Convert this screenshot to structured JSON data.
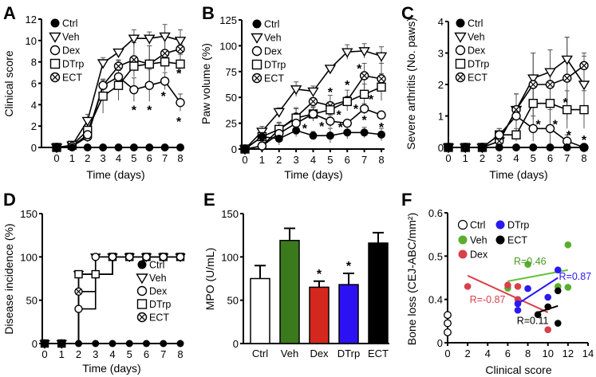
{
  "chart_data": [
    {
      "panel": "A",
      "type": "line",
      "xlabel": "Time (days)",
      "ylabel": "Clinical score",
      "xlim": [
        0,
        8
      ],
      "ylim": [
        0,
        12
      ],
      "xticks": [
        0,
        1,
        2,
        3,
        4,
        5,
        6,
        7,
        8
      ],
      "yticks": [
        0,
        2,
        4,
        6,
        8,
        10,
        12
      ],
      "x": [
        0,
        1,
        2,
        3,
        4,
        5,
        6,
        7,
        8
      ],
      "series": [
        {
          "name": "Ctrl",
          "marker": "filled-circle",
          "values": [
            0,
            0,
            0,
            0,
            0,
            0,
            0,
            0,
            0
          ],
          "error": [
            0,
            0,
            0,
            0,
            0,
            0,
            0,
            0,
            0
          ]
        },
        {
          "name": "Veh",
          "marker": "down-triangle",
          "values": [
            0,
            0.2,
            2.5,
            7.9,
            8.9,
            10.2,
            10.2,
            10.4,
            10.0
          ],
          "error": [
            0,
            0,
            0.6,
            0.5,
            0.3,
            0.8,
            0.6,
            1.1,
            1.0
          ]
        },
        {
          "name": "Dex",
          "marker": "open-circle",
          "values": [
            0,
            0.1,
            1.2,
            5.8,
            6.6,
            5.4,
            5.8,
            6.2,
            4.2
          ],
          "error": [
            0,
            0,
            0.5,
            0.5,
            1.5,
            1.1,
            1.5,
            0.8,
            0.8
          ]
        },
        {
          "name": "DTrp",
          "marker": "square",
          "values": [
            0,
            0.2,
            1.6,
            4.8,
            5.8,
            7.6,
            7.8,
            8.0,
            7.8
          ],
          "error": [
            0,
            0,
            0.3,
            1.6,
            1.4,
            0.6,
            1.7,
            0.9,
            0.9
          ]
        },
        {
          "name": "ECT",
          "marker": "x-circle",
          "values": [
            0,
            0.1,
            1.0,
            5.8,
            7.6,
            8.2,
            7.8,
            8.8,
            9.2
          ],
          "error": [
            0,
            0,
            0.5,
            0.5,
            0.6,
            1.6,
            1.7,
            1.5,
            0.5
          ]
        }
      ],
      "annotations": [
        {
          "x": 5.0,
          "y": 3.7,
          "text": "*"
        },
        {
          "x": 6.0,
          "y": 3.7,
          "text": "*"
        },
        {
          "x": 6.9,
          "y": 5.0,
          "text": "*"
        },
        {
          "x": 7.9,
          "y": 7.1,
          "text": "*"
        },
        {
          "x": 7.9,
          "y": 2.6,
          "text": "*"
        }
      ],
      "legend": "top-left"
    },
    {
      "panel": "B",
      "type": "line",
      "xlabel": "Time (days)",
      "ylabel": "Paw volume (%)",
      "xlim": [
        0,
        8
      ],
      "ylim": [
        0,
        125
      ],
      "xticks": [
        0,
        1,
        2,
        3,
        4,
        5,
        6,
        7,
        8
      ],
      "yticks": [
        0,
        25,
        50,
        75,
        100,
        125
      ],
      "x": [
        0,
        1,
        2,
        3,
        4,
        5,
        6,
        7,
        8
      ],
      "series": [
        {
          "name": "Ctrl",
          "marker": "filled-circle",
          "values": [
            0,
            12,
            10,
            18,
            13,
            13,
            16,
            16,
            14
          ],
          "error": [
            0,
            3,
            6,
            6,
            4,
            7,
            6,
            5,
            6
          ]
        },
        {
          "name": "Veh",
          "marker": "down-triangle",
          "values": [
            0,
            17,
            36,
            58,
            56,
            78,
            94,
            95,
            90
          ],
          "error": [
            0,
            5,
            4,
            7,
            5,
            0,
            7,
            7,
            9
          ]
        },
        {
          "name": "Dex",
          "marker": "open-circle",
          "values": [
            0,
            3,
            15,
            25,
            34,
            27,
            25,
            39,
            33
          ],
          "error": [
            0,
            2,
            4,
            8,
            6,
            6,
            3,
            5,
            3
          ]
        },
        {
          "name": "DTrp",
          "marker": "square",
          "values": [
            0,
            12,
            19,
            30,
            34,
            38,
            46,
            53,
            60
          ],
          "error": [
            0,
            3,
            7,
            9,
            7,
            0,
            0,
            10,
            13
          ]
        },
        {
          "name": "ECT",
          "marker": "x-circle",
          "values": [
            0,
            3,
            19,
            31,
            46,
            42,
            47,
            71,
            68
          ],
          "error": [
            0,
            3,
            6,
            9,
            0,
            10,
            10,
            12,
            15
          ]
        }
      ],
      "annotations": [
        {
          "x": 3.5,
          "y": 22,
          "text": "*"
        },
        {
          "x": 4.5,
          "y": 24,
          "text": "*"
        },
        {
          "x": 5.0,
          "y": 57,
          "text": "*"
        },
        {
          "x": 5.5,
          "y": 35,
          "text": "*"
        },
        {
          "x": 5.6,
          "y": 23,
          "text": "*"
        },
        {
          "x": 6.0,
          "y": 64,
          "text": "*"
        },
        {
          "x": 6.5,
          "y": 41,
          "text": "*"
        },
        {
          "x": 6.7,
          "y": 80,
          "text": "*"
        },
        {
          "x": 7.0,
          "y": 30,
          "text": "*"
        },
        {
          "x": 7.4,
          "y": 50,
          "text": "*"
        },
        {
          "x": 8.0,
          "y": 23,
          "text": "*"
        }
      ],
      "legend": "top-left"
    },
    {
      "panel": "C",
      "type": "line",
      "xlabel": "Time (days)",
      "ylabel": "Severe arthritis (No. paws)",
      "xlim": [
        0,
        8
      ],
      "ylim": [
        0,
        4
      ],
      "xticks": [
        0,
        1,
        2,
        3,
        4,
        5,
        6,
        7,
        8
      ],
      "yticks": [
        0,
        1,
        2,
        3,
        4
      ],
      "x": [
        0,
        1,
        2,
        3,
        4,
        5,
        6,
        7,
        8
      ],
      "series": [
        {
          "name": "Ctrl",
          "marker": "filled-circle",
          "values": [
            0,
            0,
            0,
            0,
            0,
            0,
            0,
            0,
            0
          ],
          "error": [
            0,
            0,
            0,
            0,
            0,
            0,
            0,
            0,
            0
          ]
        },
        {
          "name": "Veh",
          "marker": "down-triangle",
          "values": [
            0,
            0,
            0,
            0.2,
            1.2,
            2.2,
            2.4,
            2.8,
            2.0
          ],
          "error": [
            0,
            0,
            0,
            0.2,
            0.5,
            0.8,
            0.7,
            0.7,
            0.9
          ]
        },
        {
          "name": "Dex",
          "marker": "open-circle",
          "values": [
            0,
            0,
            0,
            0.4,
            1.0,
            0.6,
            0.6,
            0.2,
            0
          ],
          "error": [
            0,
            0,
            0,
            0.2,
            0.7,
            0.4,
            0.6,
            0.2,
            0
          ]
        },
        {
          "name": "DTrp",
          "marker": "square",
          "values": [
            0,
            0,
            0,
            0.4,
            0.4,
            1.4,
            1.4,
            1.2,
            1.2
          ],
          "error": [
            0,
            0,
            0,
            0.2,
            0.2,
            0.5,
            0.5,
            0.6,
            0.6
          ]
        },
        {
          "name": "ECT",
          "marker": "x-circle",
          "values": [
            0,
            0,
            0,
            0.2,
            1.2,
            2.0,
            2.0,
            2.2,
            2.6
          ],
          "error": [
            0,
            0,
            0,
            0.3,
            0.5,
            1.0,
            1.1,
            1.3,
            0.4
          ]
        }
      ],
      "annotations": [
        {
          "x": 5.3,
          "y": 0.8,
          "text": "*"
        },
        {
          "x": 6.3,
          "y": 0.8,
          "text": "*"
        },
        {
          "x": 6.9,
          "y": 1.5,
          "text": "*"
        },
        {
          "x": 7.1,
          "y": 0.45,
          "text": "*"
        },
        {
          "x": 8.0,
          "y": 0.3,
          "text": "*"
        }
      ],
      "legend": "top-left"
    },
    {
      "panel": "D",
      "type": "line",
      "step": true,
      "xlabel": "Time (days)",
      "ylabel": "Disease incidence (%)",
      "xlim": [
        0,
        8
      ],
      "ylim": [
        0,
        150
      ],
      "xticks": [
        0,
        1,
        2,
        3,
        4,
        5,
        6,
        7,
        8
      ],
      "yticks": [
        0,
        50,
        100,
        150
      ],
      "x": [
        0,
        1,
        2,
        3,
        4,
        5,
        6,
        7,
        8
      ],
      "series": [
        {
          "name": "Ctrl",
          "marker": "filled-circle",
          "values": [
            0,
            0,
            0,
            0,
            0,
            0,
            0,
            0,
            0
          ]
        },
        {
          "name": "Veh",
          "marker": "down-triangle",
          "values": [
            0,
            0,
            80,
            100,
            100,
            100,
            100,
            100,
            100
          ]
        },
        {
          "name": "Dex",
          "marker": "open-circle",
          "values": [
            0,
            0,
            40,
            100,
            100,
            100,
            100,
            100,
            100
          ]
        },
        {
          "name": "DTrp",
          "marker": "square",
          "values": [
            0,
            0,
            80,
            80,
            100,
            100,
            100,
            100,
            100
          ]
        },
        {
          "name": "ECT",
          "marker": "x-circle",
          "values": [
            0,
            0,
            60,
            80,
            100,
            100,
            100,
            100,
            100
          ]
        }
      ],
      "annotations": [],
      "legend": "right"
    },
    {
      "panel": "E",
      "type": "bar",
      "xlabel": "",
      "ylabel": "MPO (U/mL)",
      "ylim": [
        0,
        150
      ],
      "yticks": [
        0,
        50,
        100,
        150
      ],
      "categories": [
        "Ctrl",
        "Veh",
        "Dex",
        "DTrp",
        "ECT"
      ],
      "values": [
        75,
        119,
        65,
        68,
        116
      ],
      "error": [
        15,
        14,
        7,
        13,
        12
      ],
      "colors": [
        "#ffffff",
        "#3b7a1c",
        "#d4281e",
        "#2c12f2",
        "#000000"
      ],
      "significance": [
        "",
        "",
        "*",
        "*",
        ""
      ]
    },
    {
      "panel": "F",
      "type": "scatter",
      "xlabel": "Clinical score",
      "ylabel": "Bone loss (CEJ-ABC/mm²)",
      "xlim": [
        0,
        14
      ],
      "ylim": [
        0.3,
        0.6
      ],
      "xticks": [
        0,
        2,
        4,
        6,
        8,
        10,
        12,
        14
      ],
      "yticks": [
        {
          "value": 0.3,
          "label": "0"
        },
        {
          "value": 0.4,
          "label": "0.4"
        },
        {
          "value": 0.5,
          "label": "0.5"
        },
        {
          "value": 0.6,
          "label": "0.6"
        }
      ],
      "series": [
        {
          "name": "Ctrl",
          "color": "#ffffff",
          "points": [
            [
              0,
              0.364
            ],
            [
              0,
              0.345
            ],
            [
              0,
              0.324
            ]
          ]
        },
        {
          "name": "Veh",
          "color": "#5aae2e",
          "points": [
            [
              6,
              0.426
            ],
            [
              8,
              0.481
            ],
            [
              11,
              0.43
            ],
            [
              12,
              0.526
            ],
            [
              12,
              0.428
            ]
          ],
          "fit": [
            [
              6,
              0.442
            ],
            [
              12,
              0.468
            ]
          ],
          "r_label": "R=0.46",
          "r_pos": [
            6.6,
            0.48
          ]
        },
        {
          "name": "Dex",
          "color": "#d8404a",
          "points": [
            [
              2,
              0.43
            ],
            [
              6,
              0.433
            ],
            [
              7,
              0.43
            ],
            [
              7,
              0.4
            ],
            [
              10,
              0.33
            ]
          ],
          "fit": [
            [
              2,
              0.455
            ],
            [
              10,
              0.37
            ]
          ],
          "r_label": "R=-0.87",
          "r_pos": [
            2.2,
            0.392
          ]
        },
        {
          "name": "DTrp",
          "color": "#2a1af0",
          "points": [
            [
              7,
              0.39
            ],
            [
              7,
              0.375
            ],
            [
              8,
              0.425
            ],
            [
              10,
              0.405
            ],
            [
              11,
              0.468
            ]
          ],
          "fit": [
            [
              7,
              0.39
            ],
            [
              11,
              0.45
            ]
          ],
          "r_label": "R=0.87",
          "r_pos": [
            11.1,
            0.445
          ]
        },
        {
          "name": "ECT",
          "color": "#000000",
          "points": [
            [
              9,
              0.365
            ],
            [
              10,
              0.383
            ],
            [
              11,
              0.42
            ],
            [
              11,
              0.345
            ]
          ],
          "fit": [
            [
              9,
              0.37
            ],
            [
              11,
              0.385
            ]
          ],
          "r_label": "R=0.11",
          "r_pos": [
            6.9,
            0.343
          ]
        }
      ],
      "legend": "top-left"
    }
  ]
}
